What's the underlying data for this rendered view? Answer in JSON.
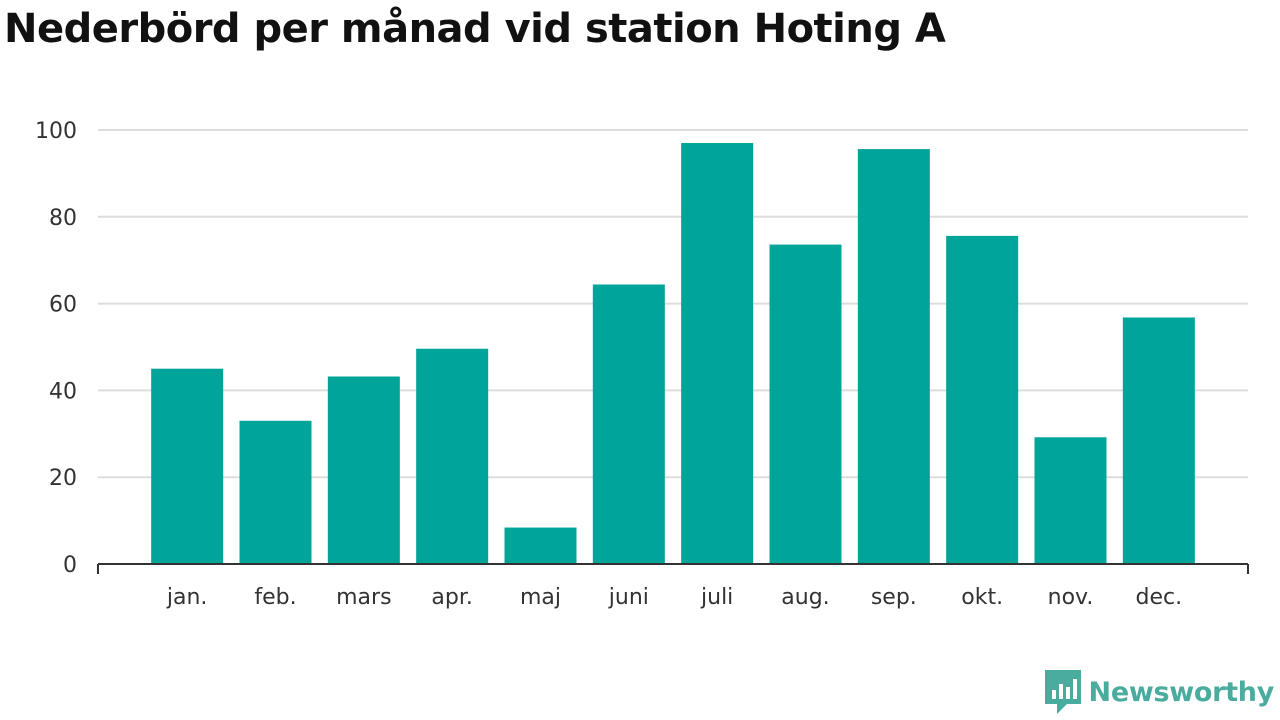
{
  "chart_data": {
    "type": "bar",
    "title": "Nederbörd per månad vid station Hoting A",
    "categories": [
      "jan.",
      "feb.",
      "mars",
      "apr.",
      "maj",
      "juni",
      "juli",
      "aug.",
      "sep.",
      "okt.",
      "nov.",
      "dec."
    ],
    "values": [
      45,
      33,
      43.2,
      49.6,
      8.4,
      64.4,
      97,
      73.6,
      95.6,
      75.6,
      29.2,
      56.8
    ],
    "ylim": [
      0,
      100
    ],
    "yticks": [
      0,
      20,
      40,
      60,
      80,
      100
    ],
    "ytick_labels": [
      "0",
      "20",
      "40",
      "60",
      "80",
      "100"
    ],
    "xlabel": "",
    "ylabel": "",
    "grid": true,
    "bar_color": "#00a499",
    "grid_color": "#dddddd",
    "axis_color": "#333333"
  },
  "brand": {
    "name": "Newsworthy",
    "color": "#4aac9e",
    "icon": "newsworthy-logo-icon"
  }
}
